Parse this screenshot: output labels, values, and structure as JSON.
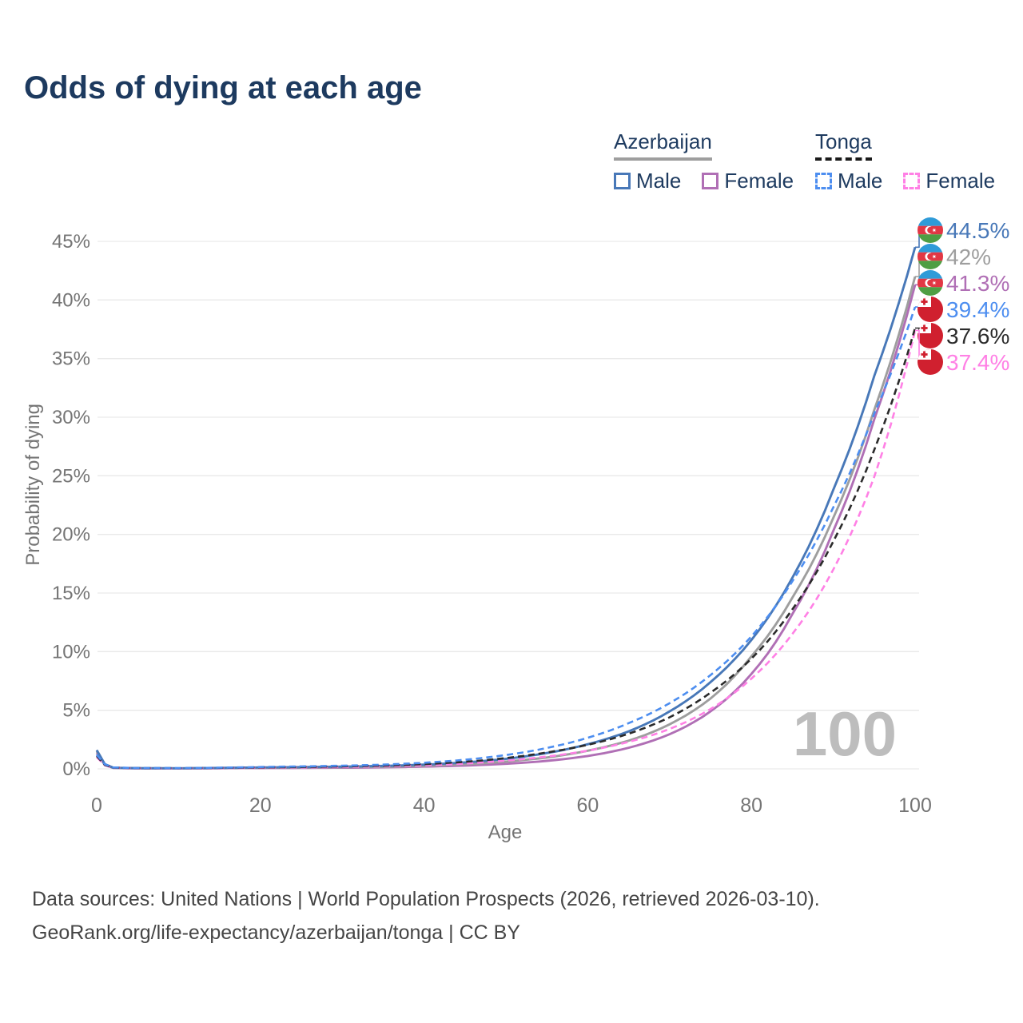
{
  "page": {
    "title": "Odds of dying at each age"
  },
  "legend": {
    "groups": [
      {
        "country": "Azerbaijan",
        "line_style": "solid",
        "underline_color": "#9e9e9e",
        "items": [
          {
            "label": "Male",
            "color": "#4878b8"
          },
          {
            "label": "Female",
            "color": "#b06fb5"
          }
        ]
      },
      {
        "country": "Tonga",
        "line_style": "dashed",
        "underline_color": "#1a1a1a",
        "items": [
          {
            "label": "Male",
            "color": "#4d8ef0"
          },
          {
            "label": "Female",
            "color": "#ff80e5"
          }
        ]
      }
    ]
  },
  "footer": {
    "line1": "Data sources: United Nations | World Population Prospects (2026, retrieved 2026-03-10).",
    "line2": "GeoRank.org/life-expectancy/azerbaijan/tonga | CC BY"
  },
  "chart_data": {
    "type": "line",
    "title": "Odds of dying at each age",
    "xlabel": "Age",
    "ylabel": "Probability of dying",
    "xlim": [
      0,
      100
    ],
    "ylim": [
      0,
      45
    ],
    "grid": "horizontal",
    "legend_position": "top-right",
    "watermark": "100",
    "y_ticks": [
      {
        "v": 0,
        "label": "0%"
      },
      {
        "v": 5,
        "label": "5%"
      },
      {
        "v": 10,
        "label": "10%"
      },
      {
        "v": 15,
        "label": "15%"
      },
      {
        "v": 20,
        "label": "20%"
      },
      {
        "v": 25,
        "label": "25%"
      },
      {
        "v": 30,
        "label": "30%"
      },
      {
        "v": 35,
        "label": "35%"
      },
      {
        "v": 40,
        "label": "40%"
      },
      {
        "v": 45,
        "label": "45%"
      }
    ],
    "x_ticks": [
      {
        "v": 0,
        "label": "0"
      },
      {
        "v": 20,
        "label": "20"
      },
      {
        "v": 40,
        "label": "40"
      },
      {
        "v": 60,
        "label": "60"
      },
      {
        "v": 80,
        "label": "80"
      },
      {
        "v": 100,
        "label": "100"
      }
    ],
    "x": [
      0,
      2,
      5,
      10,
      15,
      20,
      25,
      30,
      35,
      40,
      45,
      50,
      55,
      60,
      65,
      70,
      75,
      80,
      85,
      90,
      95,
      100
    ],
    "series": [
      {
        "name": "Azerbaijan Male",
        "country": "Azerbaijan",
        "sex": "Male",
        "color": "#4878b8",
        "dash": "solid",
        "flag": "azerbaijan",
        "end_label": "44.5%",
        "label_color": "#4878b8",
        "values": [
          1.6,
          0.1,
          0.06,
          0.05,
          0.08,
          0.12,
          0.15,
          0.19,
          0.25,
          0.36,
          0.55,
          0.85,
          1.35,
          2.1,
          3.2,
          4.9,
          7.4,
          11.0,
          16.3,
          23.8,
          33.5,
          44.5
        ]
      },
      {
        "name": "Azerbaijan Both sexes",
        "country": "Azerbaijan",
        "sex": "All",
        "color": "#9e9e9e",
        "dash": "solid",
        "flag": "azerbaijan",
        "end_label": "42%",
        "label_color": "#9e9e9e",
        "values": [
          1.5,
          0.09,
          0.05,
          0.04,
          0.06,
          0.09,
          0.11,
          0.14,
          0.18,
          0.26,
          0.4,
          0.62,
          0.97,
          1.55,
          2.4,
          3.8,
          6.0,
          9.6,
          14.6,
          21.4,
          30.6,
          42.0
        ]
      },
      {
        "name": "Azerbaijan Female",
        "country": "Azerbaijan",
        "sex": "Female",
        "color": "#b06fb5",
        "dash": "solid",
        "flag": "azerbaijan",
        "end_label": "41.3%",
        "label_color": "#b06fb5",
        "values": [
          1.35,
          0.08,
          0.04,
          0.035,
          0.05,
          0.07,
          0.08,
          0.1,
          0.13,
          0.19,
          0.28,
          0.43,
          0.68,
          1.1,
          1.8,
          2.95,
          4.9,
          8.1,
          13.2,
          20.3,
          29.8,
          41.3
        ]
      },
      {
        "name": "Tonga Male",
        "country": "Tonga",
        "sex": "Male",
        "color": "#4d8ef0",
        "dash": "dashed",
        "flag": "tonga",
        "end_label": "39.4%",
        "label_color": "#4d8ef0",
        "values": [
          1.2,
          0.12,
          0.07,
          0.06,
          0.1,
          0.16,
          0.21,
          0.27,
          0.36,
          0.52,
          0.78,
          1.18,
          1.78,
          2.65,
          3.9,
          5.6,
          8.0,
          11.3,
          16.0,
          22.3,
          30.3,
          39.4
        ]
      },
      {
        "name": "Tonga Both sexes",
        "country": "Tonga",
        "sex": "All",
        "color": "#2b2b2b",
        "dash": "dashed",
        "flag": "tonga",
        "end_label": "37.6%",
        "label_color": "#2b2b2b",
        "values": [
          1.1,
          0.1,
          0.06,
          0.05,
          0.08,
          0.12,
          0.16,
          0.21,
          0.28,
          0.4,
          0.6,
          0.92,
          1.4,
          2.05,
          3.0,
          4.4,
          6.5,
          9.4,
          13.6,
          19.4,
          27.2,
          37.6
        ]
      },
      {
        "name": "Tonga Female",
        "country": "Tonga",
        "sex": "Female",
        "color": "#ff80e5",
        "dash": "dashed",
        "flag": "tonga",
        "end_label": "37.4%",
        "label_color": "#ff80e5",
        "values": [
          1.0,
          0.09,
          0.05,
          0.04,
          0.06,
          0.09,
          0.12,
          0.16,
          0.21,
          0.3,
          0.45,
          0.7,
          1.05,
          1.55,
          2.3,
          3.4,
          5.1,
          7.7,
          11.5,
          17.0,
          24.9,
          37.4
        ]
      }
    ]
  }
}
